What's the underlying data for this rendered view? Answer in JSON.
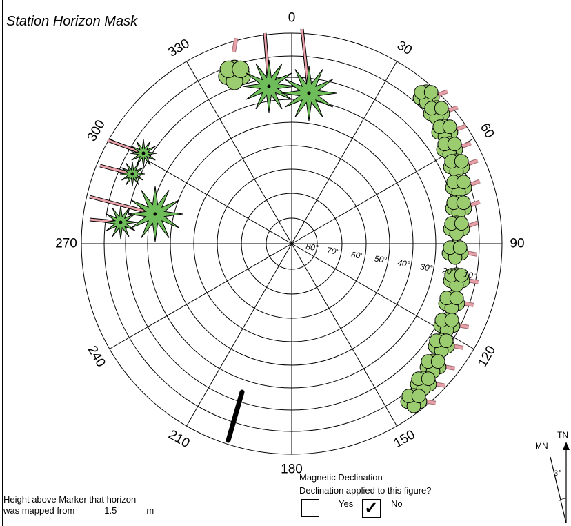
{
  "title": "Station Horizon Mask",
  "azimuth_labels": [
    "0",
    "30",
    "60",
    "90",
    "120",
    "150",
    "180",
    "210",
    "240",
    "270",
    "300",
    "330"
  ],
  "elevation_labels": [
    "80°",
    "70°",
    "60°",
    "50°",
    "40°",
    "30°",
    "20°",
    "10°"
  ],
  "height": {
    "line1": "Height above Marker that horizon",
    "line2_prefix": "was mapped from",
    "value": "1.5",
    "unit": "m"
  },
  "declination": {
    "label": "Magnetic Declination",
    "question": "Declination applied to this figure?",
    "yes_label": "Yes",
    "no_label": "No",
    "no_checked_mark": "✓"
  },
  "north": {
    "true_north": "TN",
    "magnetic_north": "MN",
    "angle": "3°"
  },
  "obstructions": [
    {
      "type": "palm-tree",
      "azimuth": 352
    },
    {
      "type": "palm-tree",
      "azimuth": 5
    },
    {
      "type": "tree",
      "azimuth": 340
    },
    {
      "type": "tree-line",
      "azimuth_range": [
        35,
        155
      ]
    },
    {
      "type": "palm-tree",
      "azimuth": 290
    },
    {
      "type": "palm-tree",
      "azimuth": 280
    },
    {
      "type": "pole",
      "azimuth": 200
    }
  ],
  "colors": {
    "foliage": "#9ccc70",
    "palm": "#6ebd5a",
    "trunk": "#e8a0a8",
    "outline": "#000000"
  }
}
